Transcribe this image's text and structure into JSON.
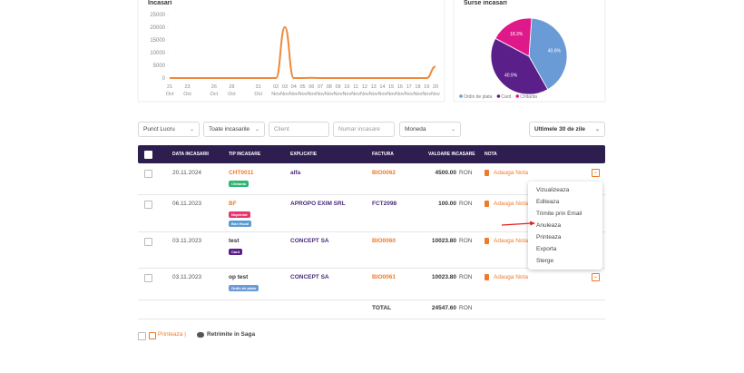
{
  "line_chart": {
    "title": "Incasari",
    "ylim": [
      0,
      25000
    ],
    "yticks": [
      0,
      5000,
      10000,
      15000,
      20000,
      25000
    ],
    "x_days": [
      "21",
      "23",
      "26",
      "28",
      "31",
      "02",
      "03",
      "04",
      "05",
      "06",
      "07",
      "08",
      "09",
      "10",
      "11",
      "12",
      "13",
      "14",
      "15",
      "16",
      "17",
      "18",
      "19",
      "20"
    ],
    "x_months": [
      "Oct",
      "Oct",
      "Oct",
      "Oct",
      "Oct",
      "Nov",
      "Nov",
      "Nov",
      "Nov",
      "Nov",
      "Nov",
      "Nov",
      "Nov",
      "Nov",
      "Nov",
      "Nov",
      "Nov",
      "Nov",
      "Nov",
      "Nov",
      "Nov",
      "Nov",
      "Nov",
      "Nov"
    ],
    "values": [
      0,
      0,
      0,
      0,
      0,
      0,
      20047.6,
      0,
      0,
      100,
      0,
      0,
      0,
      0,
      0,
      0,
      0,
      0,
      0,
      0,
      0,
      0,
      0,
      4500
    ],
    "color": "#ee8a3c"
  },
  "pie_chart": {
    "title": "Surse incasari",
    "names": [
      "Ordin de plata",
      "Card",
      "Chitanta"
    ],
    "values": [
      40.6,
      40.9,
      18.3
    ],
    "value_labels": [
      "40.6%",
      "40.9%",
      "18.3%"
    ],
    "colors": [
      "#6a9bd6",
      "#5b1f8a",
      "#e0198a"
    ]
  },
  "filters": [
    "Punct Lucru",
    "Toate incasarile",
    "Client",
    "Numar incasare",
    "Moneda"
  ],
  "period": "Ultimele 30 de zile",
  "table": {
    "headers": [
      "DATA INCASARII",
      "TIP INCASARE",
      "EXPLICATIE",
      "FACTURA",
      "VALOARE INCASARE",
      "NOTA"
    ],
    "rows": [
      {
        "date": "20.11.2024",
        "type": "CHT0011",
        "badges": [
          {
            "text": "Chitanta",
            "color": "#2bb673"
          }
        ],
        "explanation": "alfa",
        "invoice": "BIO0062",
        "amount": "4500.00",
        "currency": "RON",
        "note": "Adauga Nota"
      },
      {
        "date": "06.11.2023",
        "type": "BF",
        "badges": [
          {
            "text": "Neprintat",
            "color": "#e8336d"
          },
          {
            "text": "Bon fiscal",
            "color": "#5b9bd5"
          }
        ],
        "explanation": "APROPO EXIM SRL",
        "invoice": "FCT2098",
        "amount": "100.00",
        "currency": "RON",
        "note": "Adauga Nota"
      },
      {
        "date": "03.11.2023",
        "type": "test",
        "badges": [
          {
            "text": "Card",
            "color": "#5b1f8a"
          }
        ],
        "explanation": "CONCEPT SA",
        "invoice": "BIO0060",
        "amount": "10023.80",
        "currency": "RON",
        "note": "Adauga Nota"
      },
      {
        "date": "03.11.2023",
        "type": "op test",
        "badges": [
          {
            "text": "Ordin de plata",
            "color": "#6a9bd6"
          }
        ],
        "explanation": "CONCEPT SA",
        "invoice": "BIO0061",
        "amount": "10023.80",
        "currency": "RON",
        "note": "Adauga Nota"
      }
    ],
    "total_label": "TOTAL",
    "total": "24547.60",
    "total_currency": "RON"
  },
  "menu": [
    "Vizualizeaza",
    "Editeaza",
    "Trimite prin Email",
    "Anuleaza",
    "Printeaza",
    "Exporta",
    "Sterge"
  ],
  "footer": {
    "print": "Printeaza |",
    "resend": "Retrimite in Saga"
  }
}
